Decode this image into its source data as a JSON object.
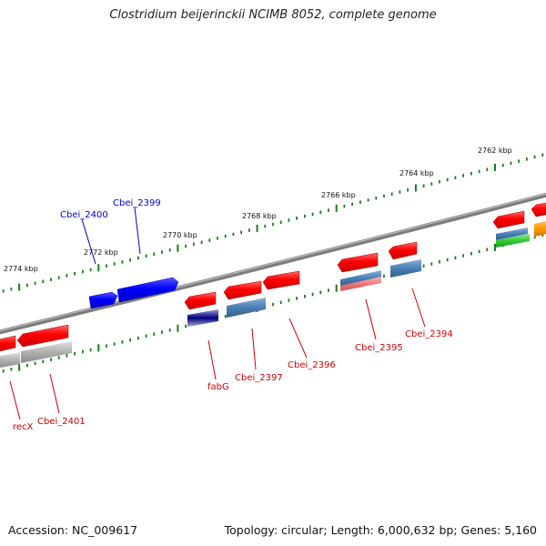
{
  "title": "Clostridium beijerinckii NCIMB 8052, complete genome",
  "footer": {
    "accession": "Accession: NC_009617",
    "summary": "Topology: circular; Length: 6,000,632 bp; Genes: 5,160"
  },
  "scale": {
    "tick_labels": [
      "2774 kbp",
      "2772 kbp",
      "2770 kbp",
      "2768 kbp",
      "2766 kbp",
      "2764 kbp",
      "2762 kbp"
    ]
  },
  "genes_reverse_strand": [
    {
      "label": "Cbei_2400",
      "color": "#0000cc"
    },
    {
      "label": "Cbei_2399",
      "color": "#0000cc"
    }
  ],
  "genes_forward_strand": [
    {
      "label": "recX",
      "color": "#cc0000"
    },
    {
      "label": "Cbei_2401",
      "color": "#cc0000"
    },
    {
      "label": "fabG",
      "color": "#cc0000"
    },
    {
      "label": "Cbei_2397",
      "color": "#cc0000"
    },
    {
      "label": "Cbei_2396",
      "color": "#cc0000"
    },
    {
      "label": "Cbei_2395",
      "color": "#cc0000"
    },
    {
      "label": "Cbei_2394",
      "color": "#cc0000"
    }
  ],
  "colors": {
    "backbone": "#808080",
    "tick": "#1a7a1a",
    "forward_gene": "#ff0000",
    "reverse_gene": "#0000ee",
    "cog_blue": "#4a7fb5",
    "cog_gray": "#aaaaaa",
    "cog_navy": "#000080",
    "cog_pink": "#ee7777",
    "cog_green": "#33cc33",
    "cog_orange": "#ff9900"
  }
}
